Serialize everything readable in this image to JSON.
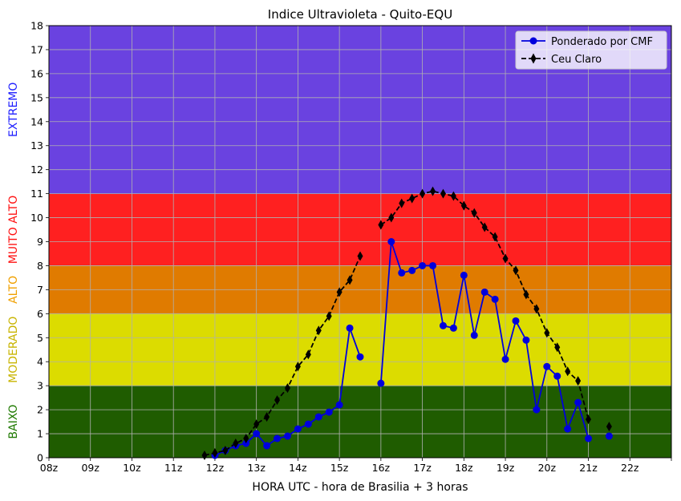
{
  "chart_data": {
    "type": "line",
    "title": "Indice Ultravioleta - Quito-EQU",
    "xlabel": "HORA UTC - hora de Brasilia + 3 horas",
    "ylabel": "",
    "xlim": [
      8,
      23
    ],
    "ylim": [
      0,
      18
    ],
    "grid": true,
    "legend_position": "top-right",
    "x_tick_labels": [
      "08z",
      "09z",
      "10z",
      "11z",
      "12z",
      "13z",
      "14z",
      "15z",
      "16z",
      "17z",
      "18z",
      "19z",
      "20z",
      "21z",
      "22z",
      ""
    ],
    "y_ticks": [
      0,
      1,
      2,
      3,
      4,
      5,
      6,
      7,
      8,
      9,
      10,
      11,
      12,
      13,
      14,
      15,
      16,
      17,
      18
    ],
    "bands": [
      {
        "name": "BAIXO",
        "from": 0,
        "to": 3,
        "color": "#1f5c00",
        "label_color": "#1f7a00"
      },
      {
        "name": "MODERADO",
        "from": 3,
        "to": 6,
        "color": "#dcdc00",
        "label_color": "#c8b400"
      },
      {
        "name": "ALTO",
        "from": 6,
        "to": 8,
        "color": "#e07b00",
        "label_color": "#f0a000"
      },
      {
        "name": "MUITO ALTO",
        "from": 8,
        "to": 11,
        "color": "#ff2020",
        "label_color": "#ff1010"
      },
      {
        "name": "EXTREMO",
        "from": 11,
        "to": 18,
        "color": "#6a42e0",
        "label_color": "#2020ff"
      }
    ],
    "series": [
      {
        "name": "Ponderado por CMF",
        "color": "#0000dd",
        "marker": "circle",
        "line": "solid",
        "segments": [
          [
            [
              12.0,
              0.1
            ],
            [
              12.25,
              0.3
            ],
            [
              12.5,
              0.5
            ],
            [
              12.75,
              0.6
            ],
            [
              13.0,
              1.0
            ],
            [
              13.25,
              0.5
            ],
            [
              13.5,
              0.8
            ],
            [
              13.75,
              0.9
            ],
            [
              14.0,
              1.2
            ],
            [
              14.25,
              1.4
            ],
            [
              14.5,
              1.7
            ],
            [
              14.75,
              1.9
            ],
            [
              15.0,
              2.2
            ],
            [
              15.25,
              5.4
            ],
            [
              15.5,
              4.2
            ]
          ],
          [
            [
              16.0,
              3.1
            ],
            [
              16.25,
              9.0
            ],
            [
              16.5,
              7.7
            ],
            [
              16.75,
              7.8
            ],
            [
              17.0,
              8.0
            ],
            [
              17.25,
              8.0
            ],
            [
              17.5,
              5.5
            ],
            [
              17.75,
              5.4
            ],
            [
              18.0,
              7.6
            ],
            [
              18.25,
              5.1
            ],
            [
              18.5,
              6.9
            ],
            [
              18.75,
              6.6
            ],
            [
              19.0,
              4.1
            ],
            [
              19.25,
              5.7
            ],
            [
              19.5,
              4.9
            ],
            [
              19.75,
              2.0
            ],
            [
              20.0,
              3.8
            ],
            [
              20.25,
              3.4
            ],
            [
              20.5,
              1.2
            ],
            [
              20.75,
              2.3
            ],
            [
              21.0,
              0.8
            ]
          ],
          [
            [
              21.5,
              0.9
            ]
          ]
        ]
      },
      {
        "name": "Ceu Claro",
        "color": "#000000",
        "marker": "diamond",
        "line": "dashed",
        "segments": [
          [
            [
              11.75,
              0.1
            ],
            [
              12.0,
              0.2
            ],
            [
              12.25,
              0.3
            ],
            [
              12.5,
              0.6
            ],
            [
              12.75,
              0.8
            ],
            [
              13.0,
              1.4
            ],
            [
              13.25,
              1.7
            ],
            [
              13.5,
              2.4
            ],
            [
              13.75,
              2.9
            ],
            [
              14.0,
              3.8
            ],
            [
              14.25,
              4.3
            ],
            [
              14.5,
              5.3
            ],
            [
              14.75,
              5.9
            ],
            [
              15.0,
              6.9
            ],
            [
              15.25,
              7.4
            ],
            [
              15.5,
              8.4
            ]
          ],
          [
            [
              16.0,
              9.7
            ],
            [
              16.25,
              10.0
            ],
            [
              16.5,
              10.6
            ],
            [
              16.75,
              10.8
            ],
            [
              17.0,
              11.0
            ],
            [
              17.25,
              11.1
            ],
            [
              17.5,
              11.0
            ],
            [
              17.75,
              10.9
            ],
            [
              18.0,
              10.5
            ],
            [
              18.25,
              10.2
            ],
            [
              18.5,
              9.6
            ],
            [
              18.75,
              9.2
            ],
            [
              19.0,
              8.3
            ],
            [
              19.25,
              7.8
            ],
            [
              19.5,
              6.8
            ],
            [
              19.75,
              6.2
            ],
            [
              20.0,
              5.2
            ],
            [
              20.25,
              4.6
            ],
            [
              20.5,
              3.6
            ],
            [
              20.75,
              3.2
            ],
            [
              21.0,
              1.6
            ]
          ],
          [
            [
              21.5,
              1.3
            ]
          ]
        ]
      }
    ]
  }
}
